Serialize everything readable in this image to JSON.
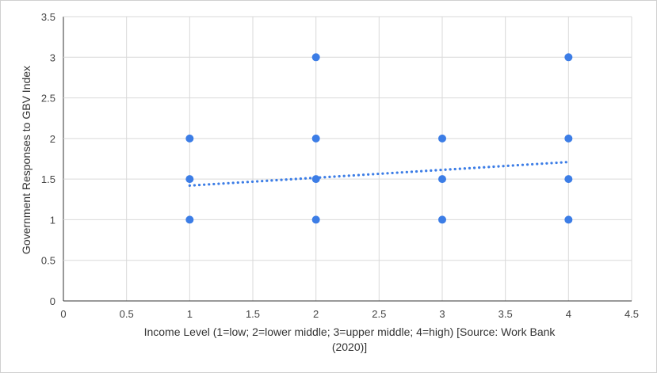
{
  "chart_data": {
    "type": "scatter",
    "xlabel_lines": [
      "Income Level  (1=low; 2=lower middle; 3=upper middle; 4=high) [Source: Work Bank",
      "(2020)]"
    ],
    "ylabel": "Government Responses to GBV Index",
    "xlim": [
      0,
      4.5
    ],
    "ylim": [
      0,
      3.5
    ],
    "x_ticks": [
      "0",
      "0.5",
      "1",
      "1.5",
      "2",
      "2.5",
      "3",
      "3.5",
      "4",
      "4.5"
    ],
    "y_ticks": [
      "0",
      "0.5",
      "1",
      "1.5",
      "2",
      "2.5",
      "3",
      "3.5"
    ],
    "grid": true,
    "points": [
      {
        "x": 1,
        "y": 1
      },
      {
        "x": 1,
        "y": 1.5
      },
      {
        "x": 1,
        "y": 2
      },
      {
        "x": 2,
        "y": 1
      },
      {
        "x": 2,
        "y": 1.5
      },
      {
        "x": 2,
        "y": 2
      },
      {
        "x": 2,
        "y": 3
      },
      {
        "x": 3,
        "y": 1
      },
      {
        "x": 3,
        "y": 1.5
      },
      {
        "x": 3,
        "y": 2
      },
      {
        "x": 4,
        "y": 1
      },
      {
        "x": 4,
        "y": 1.5
      },
      {
        "x": 4,
        "y": 2
      },
      {
        "x": 4,
        "y": 3
      }
    ],
    "trendline": {
      "style": "dotted",
      "x_start": 1,
      "y_start": 1.42,
      "x_end": 4,
      "y_end": 1.71
    },
    "colors": {
      "points": "#3c7de6",
      "trendline": "#3c7de6",
      "grid": "#d9d9d9"
    }
  }
}
